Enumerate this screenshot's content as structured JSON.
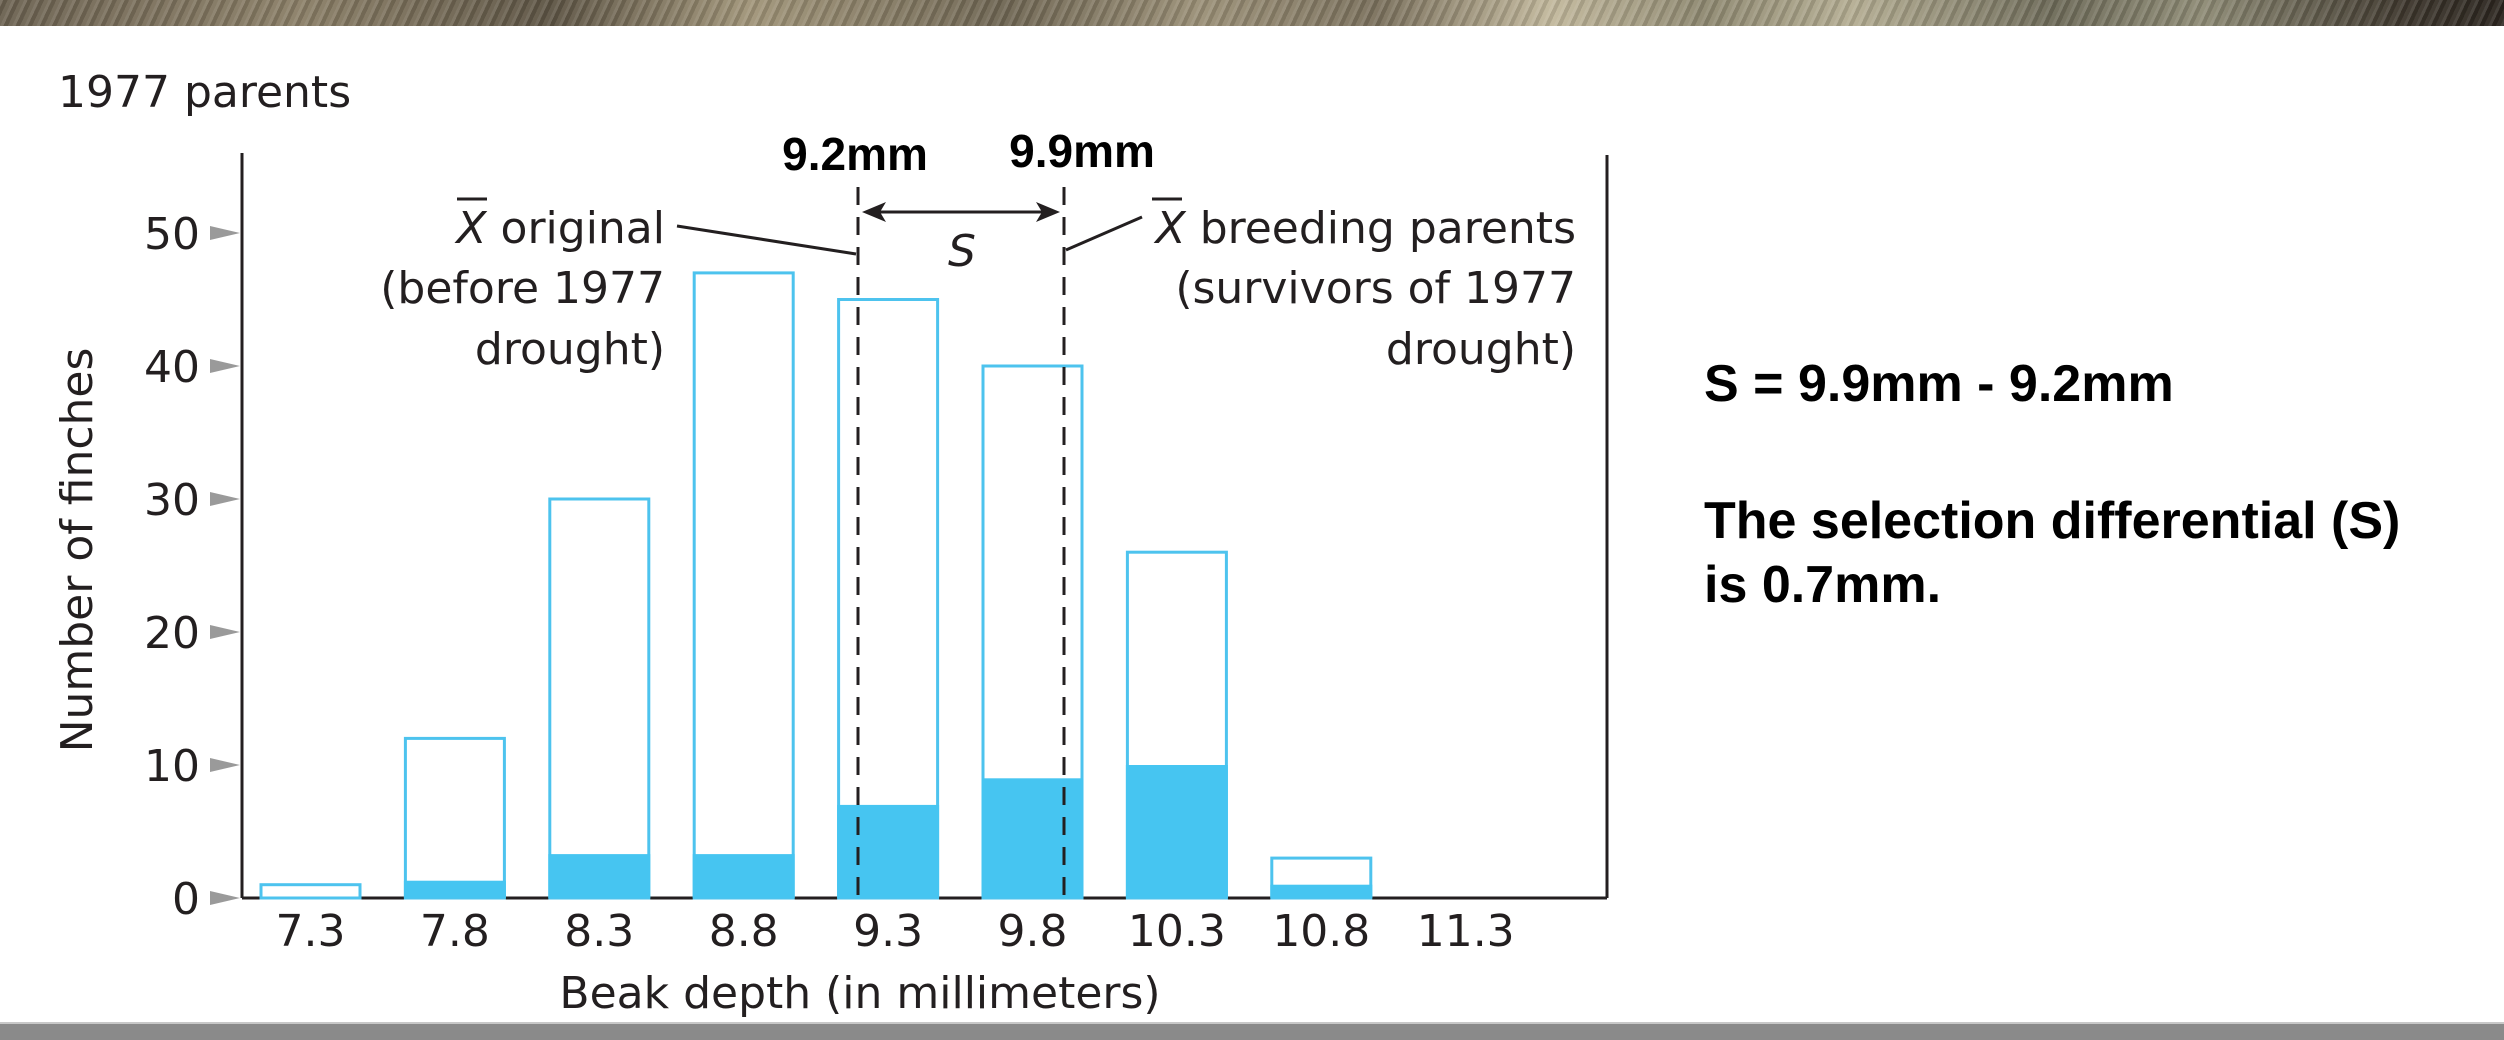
{
  "colors": {
    "bar_outline": "#4dc3ee",
    "bar_fill": "#46c5f1",
    "axis": "#231f20",
    "tick_marker": "#9a9a9a",
    "text": "#231f20"
  },
  "chart_data": {
    "type": "bar",
    "title": "1977 parents",
    "xlabel": "Beak depth (in millimeters)",
    "ylabel": "Number of finches",
    "categories": [
      "7.3",
      "7.8",
      "8.3",
      "8.8",
      "9.3",
      "9.8",
      "10.3",
      "10.8",
      "11.3"
    ],
    "series": [
      {
        "name": "Original population (before 1977 drought)",
        "style": "outline",
        "values": [
          1,
          12,
          30,
          47,
          45,
          40,
          26,
          3,
          0
        ]
      },
      {
        "name": "Breeding parents (survivors of 1977 drought)",
        "style": "filled",
        "values": [
          0,
          1.3,
          3.3,
          3.3,
          7,
          9,
          10,
          1,
          0
        ]
      }
    ],
    "yticks": [
      0,
      10,
      20,
      30,
      40,
      50
    ],
    "ylim": [
      0,
      55
    ],
    "grid": false,
    "annotations": [
      {
        "text": "X̄ original (before 1977 drought)",
        "x": 9.2,
        "label": "9.2mm"
      },
      {
        "text": "X̄ breeding parents (survivors of 1977 drought)",
        "x": 9.9,
        "label": "9.9mm"
      },
      {
        "text": "S",
        "meaning": "selection differential between the two means"
      }
    ]
  },
  "chart": {
    "title": "1977 parents",
    "y_axis_title": "Number of finches",
    "x_axis_title": "Beak depth (in millimeters)",
    "y_ticks": [
      "0",
      "10",
      "20",
      "30",
      "40",
      "50"
    ],
    "x_ticks": [
      "7.3",
      "7.8",
      "8.3",
      "8.8",
      "9.3",
      "9.8",
      "10.3",
      "10.8",
      "11.3"
    ],
    "mean_original_label": "9.2mm",
    "mean_parents_label": "9.9mm",
    "s_label": "S",
    "left_annotation": {
      "xbar": "X",
      "line1": "original",
      "line2": "(before 1977",
      "line3": "drought)"
    },
    "right_annotation": {
      "xbar": "X",
      "line1": "breeding parents",
      "line2": "(survivors of 1977",
      "line3": "drought)"
    }
  },
  "explanation": {
    "formula": "S = 9.9mm - 9.2mm",
    "conclusion_line1": "The selection differential (S)",
    "conclusion_line2": "is 0.7mm."
  }
}
